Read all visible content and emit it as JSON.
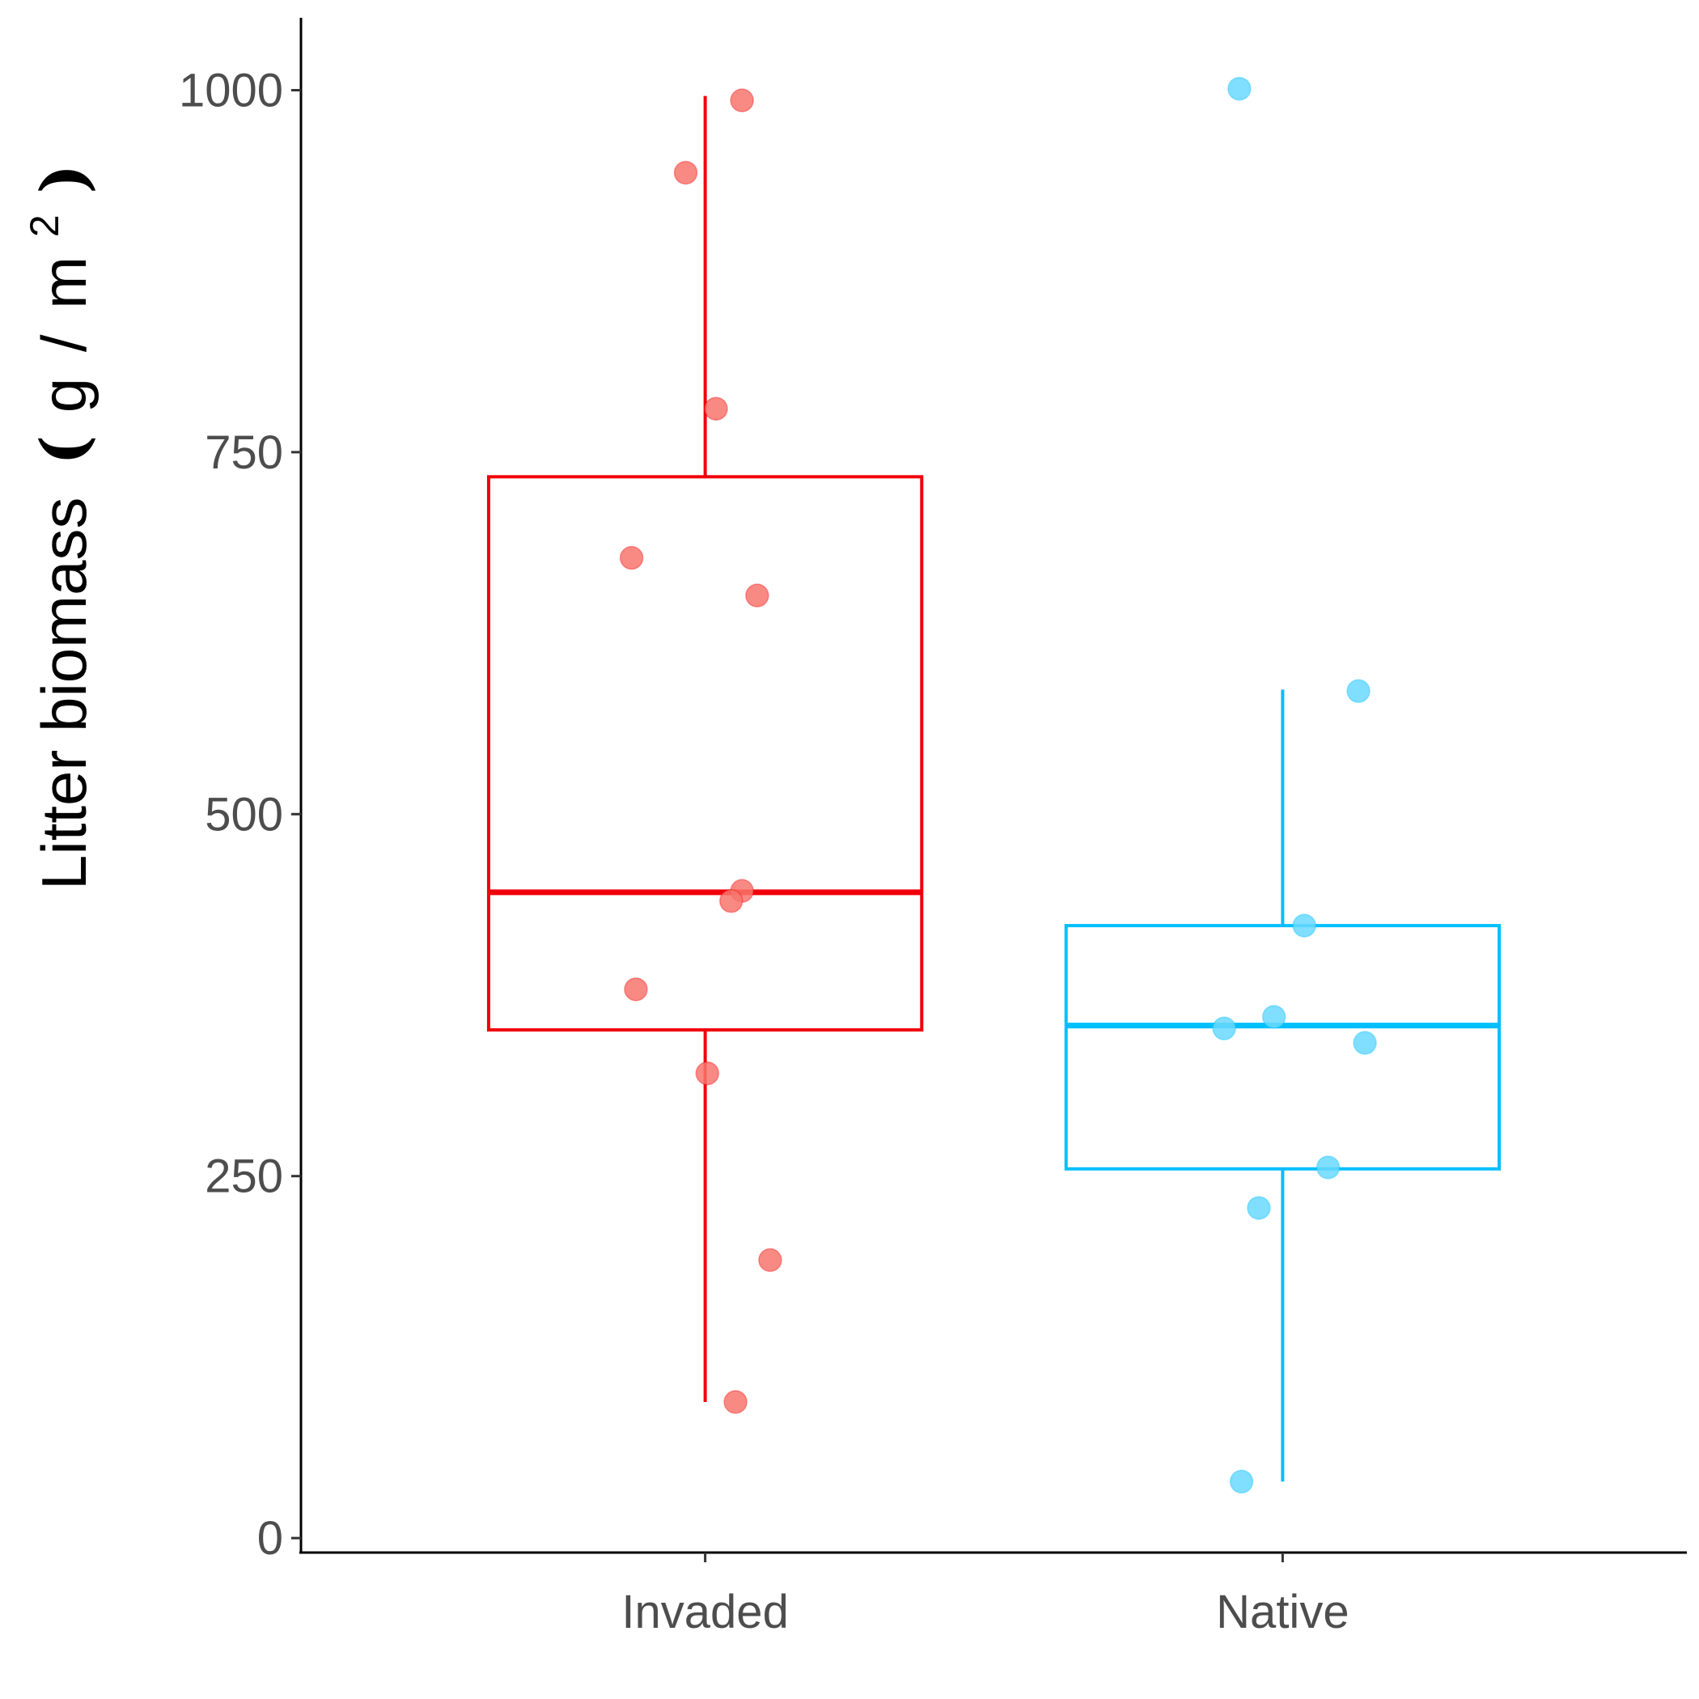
{
  "chart_data": {
    "type": "box",
    "ylabel": {
      "main": "Litter biomass",
      "open": "(",
      "unit_g": "g",
      "slash": "/",
      "unit_m": "m",
      "exponent": "2",
      "close": ")"
    },
    "xlabel": "",
    "ylim": [
      -10,
      1050
    ],
    "yticks": [
      0,
      250,
      500,
      750,
      1000
    ],
    "ytick_labels": [
      "0",
      "250",
      "500",
      "750",
      "1000"
    ],
    "categories": [
      "Invaded",
      "Native"
    ],
    "groups": [
      {
        "name": "Invaded",
        "color": "#f0000a",
        "point_color": "#f8766d",
        "box": {
          "q1": 351,
          "median": 446,
          "q3": 733,
          "whisker_low": 94,
          "whisker_high": 996
        },
        "points": [
          {
            "offset": 0.17,
            "y": 993
          },
          {
            "offset": -0.09,
            "y": 943
          },
          {
            "offset": 0.05,
            "y": 780
          },
          {
            "offset": -0.34,
            "y": 677
          },
          {
            "offset": 0.24,
            "y": 651
          },
          {
            "offset": 0.17,
            "y": 447
          },
          {
            "offset": 0.12,
            "y": 440
          },
          {
            "offset": -0.32,
            "y": 379
          },
          {
            "offset": 0.01,
            "y": 321
          },
          {
            "offset": 0.3,
            "y": 192
          },
          {
            "offset": 0.14,
            "y": 94
          }
        ]
      },
      {
        "name": "Native",
        "color": "#00bfff",
        "point_color": "#6ad8ff",
        "box": {
          "q1": 255,
          "median": 354,
          "q3": 423,
          "whisker_low": 39,
          "whisker_high": 586
        },
        "points": [
          {
            "offset": -0.2,
            "y": 1001
          },
          {
            "offset": 0.35,
            "y": 585
          },
          {
            "offset": 0.1,
            "y": 423
          },
          {
            "offset": -0.04,
            "y": 360
          },
          {
            "offset": -0.27,
            "y": 352
          },
          {
            "offset": 0.38,
            "y": 342
          },
          {
            "offset": 0.21,
            "y": 256
          },
          {
            "offset": -0.11,
            "y": 228
          },
          {
            "offset": -0.19,
            "y": 39
          }
        ]
      }
    ],
    "grid": false,
    "legend": "none"
  }
}
